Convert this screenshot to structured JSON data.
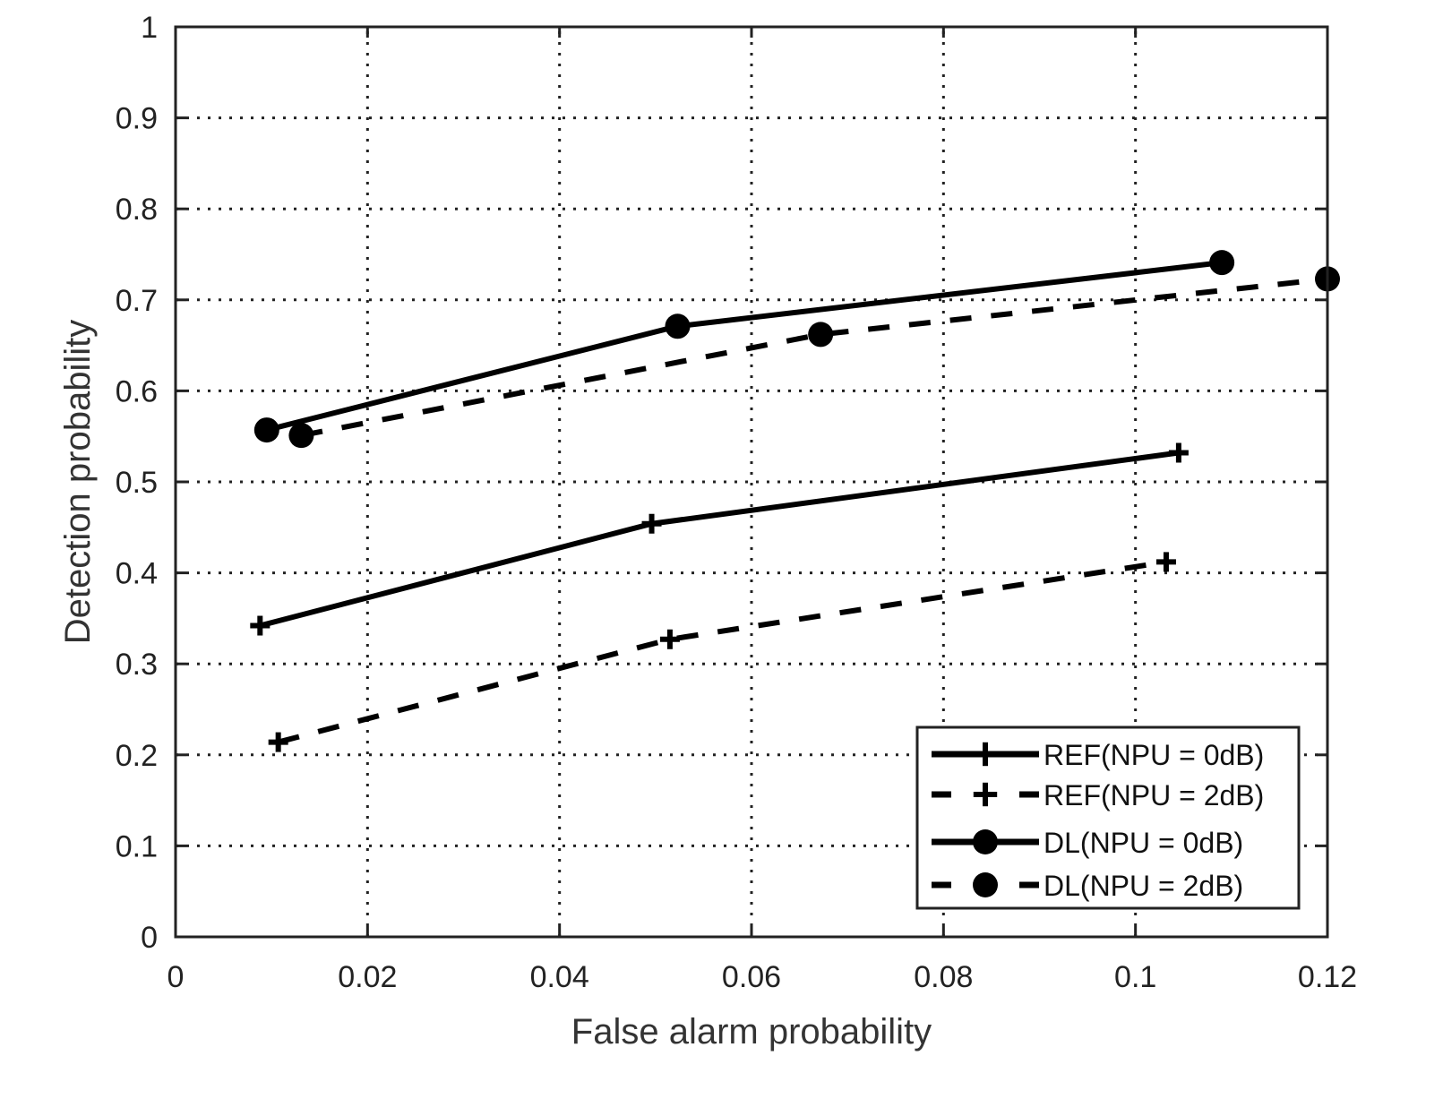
{
  "chart_data": {
    "type": "line",
    "title": "",
    "xlabel": "False alarm probability",
    "ylabel": "Detection probability",
    "xlim": [
      0,
      0.12
    ],
    "ylim": [
      0,
      1
    ],
    "xticks": [
      "0",
      "0.02",
      "0.04",
      "0.06",
      "0.08",
      "0.1",
      "0.12"
    ],
    "yticks": [
      "0",
      "0.1",
      "0.2",
      "0.3",
      "0.4",
      "0.5",
      "0.6",
      "0.7",
      "0.8",
      "0.9",
      "1"
    ],
    "grid": true,
    "legend_position": "lower right",
    "series": [
      {
        "name": "REF(NPU = 0dB)",
        "line": "solid",
        "marker": "plus",
        "x": [
          0.0088,
          0.0496,
          0.1045
        ],
        "y": [
          0.342,
          0.454,
          0.532
        ]
      },
      {
        "name": "REF(NPU = 2dB)",
        "line": "dashed",
        "marker": "plus",
        "x": [
          0.0107,
          0.0515,
          0.1032
        ],
        "y": [
          0.214,
          0.327,
          0.412
        ]
      },
      {
        "name": "DL(NPU = 0dB)",
        "line": "solid",
        "marker": "circle",
        "x": [
          0.0095,
          0.0523,
          0.109
        ],
        "y": [
          0.557,
          0.671,
          0.741
        ]
      },
      {
        "name": "DL(NPU = 2dB)",
        "line": "dashed",
        "marker": "circle",
        "x": [
          0.0131,
          0.0672,
          0.12
        ],
        "y": [
          0.551,
          0.662,
          0.723
        ]
      }
    ]
  }
}
